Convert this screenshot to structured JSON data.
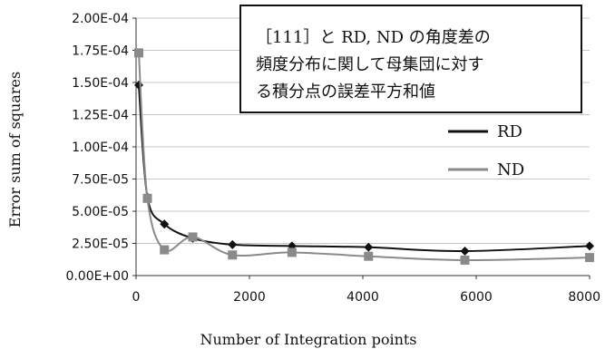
{
  "chart_data": {
    "type": "line",
    "xlabel": "Number of Integration points",
    "ylabel": "Error sum of squares",
    "xlim": [
      0,
      8000
    ],
    "ylim": [
      0,
      0.0002
    ],
    "x_ticks": [
      "0",
      "2000",
      "4000",
      "6000",
      "8000"
    ],
    "y_ticks": [
      "0.00E+00",
      "2.50E-05",
      "5.00E-05",
      "7.50E-05",
      "1.00E-04",
      "1.25E-04",
      "1.50E-04",
      "1.75E-04",
      "2.00E-04"
    ],
    "grid": true,
    "legend_position": "right",
    "annotation": [
      "［111］と RD, ND の角度差の",
      "頻度分布に関して母集団に対す",
      "る積分点の誤差平方和値"
    ],
    "series": [
      {
        "name": "RD",
        "color": "#111111",
        "marker": "diamond",
        "x": [
          48,
          200,
          500,
          1000,
          1700,
          2750,
          4100,
          5800,
          8000
        ],
        "y": [
          0.000148,
          6.1e-05,
          4e-05,
          2.9e-05,
          2.4e-05,
          2.3e-05,
          2.2e-05,
          1.9e-05,
          2.3e-05
        ]
      },
      {
        "name": "ND",
        "color": "#8a8a8a",
        "marker": "square",
        "x": [
          48,
          200,
          500,
          1000,
          1700,
          2750,
          4100,
          5800,
          8000
        ],
        "y": [
          0.000173,
          6e-05,
          2e-05,
          3e-05,
          1.6e-05,
          1.8e-05,
          1.5e-05,
          1.2e-05,
          1.4e-05
        ]
      }
    ]
  }
}
